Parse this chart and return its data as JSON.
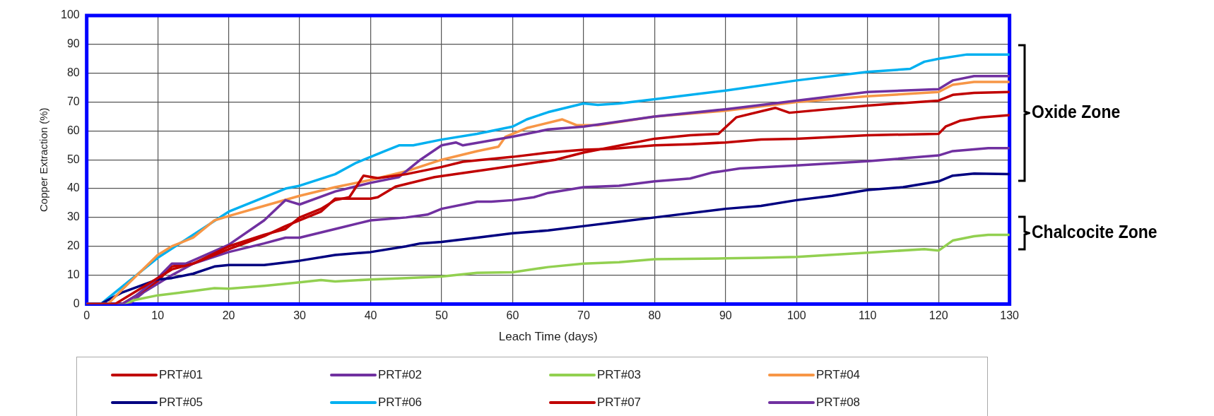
{
  "chart_data": {
    "type": "line",
    "xlabel": "Leach Time (days)",
    "ylabel": "Copper Extraction (%)",
    "xlim": [
      0,
      130
    ],
    "xticks": [
      0,
      10,
      20,
      30,
      40,
      50,
      60,
      70,
      80,
      90,
      100,
      110,
      120,
      130
    ],
    "ylim": [
      0,
      100
    ],
    "yticks": [
      0,
      10,
      20,
      30,
      40,
      50,
      60,
      70,
      80,
      90,
      100
    ],
    "grid": true,
    "legend": "bottom",
    "marker": "none",
    "line_style": "solid",
    "annotations": [
      "Oxide Zone",
      "Chalcocite Zone"
    ],
    "series": [
      {
        "name": "PRT#01",
        "color": "#c00000",
        "x": [
          0,
          4,
          6,
          10,
          12,
          15,
          20,
          25,
          28,
          30,
          33,
          35,
          37,
          39,
          41,
          45,
          50,
          53,
          60,
          65,
          70,
          74,
          80,
          85,
          90,
          95,
          100,
          110,
          120,
          121,
          123,
          126,
          130
        ],
        "values": [
          0,
          0,
          3,
          9,
          12,
          14,
          20,
          24,
          26,
          30,
          33,
          36,
          37,
          44.5,
          43.6,
          45,
          47.5,
          49.3,
          51,
          52.5,
          53.5,
          53.8,
          55,
          55.4,
          56,
          57,
          57.3,
          58.5,
          59,
          61.5,
          63.5,
          64.7,
          65.5
        ]
      },
      {
        "name": "PRT#02",
        "color": "#7030a0",
        "x": [
          0,
          5,
          7,
          10,
          12,
          14,
          20,
          25,
          28,
          30,
          35,
          40,
          44,
          47,
          50,
          52,
          53,
          60,
          65,
          70,
          80,
          90,
          100,
          110,
          120,
          122,
          125,
          130
        ],
        "values": [
          0,
          0,
          3,
          9,
          14,
          14,
          20.5,
          29,
          36,
          34.5,
          39,
          42,
          44,
          50,
          55,
          56,
          55,
          58,
          60.5,
          61.5,
          65,
          67.5,
          70.5,
          73.5,
          74.5,
          77.5,
          79,
          79
        ]
      },
      {
        "name": "PRT#03",
        "color": "#92d050",
        "x": [
          0,
          5,
          7,
          10,
          15,
          18,
          20,
          25,
          30,
          33,
          35,
          40,
          45,
          50,
          55,
          60,
          65,
          70,
          75,
          80,
          90,
          95,
          100,
          110,
          118,
          120,
          122,
          125,
          127,
          130
        ],
        "values": [
          0,
          0,
          1.5,
          3,
          4.5,
          5.5,
          5.3,
          6.3,
          7.5,
          8.3,
          7.8,
          8.5,
          9,
          9.5,
          10.8,
          11,
          12.8,
          14,
          14.5,
          15.5,
          15.8,
          16,
          16.3,
          17.8,
          19,
          18.5,
          22,
          23.5,
          24,
          24
        ]
      },
      {
        "name": "PRT#04",
        "color": "#f79646",
        "x": [
          0,
          3,
          5,
          10,
          12,
          15,
          18,
          20,
          25,
          30,
          35,
          40,
          45,
          50,
          55,
          58,
          59,
          62,
          67,
          69,
          72,
          80,
          90,
          100,
          110,
          120,
          122,
          125,
          130
        ],
        "values": [
          0,
          0,
          5,
          17,
          20,
          23,
          29,
          30.5,
          34,
          37.5,
          40.5,
          43,
          46,
          50,
          53,
          54.5,
          58,
          61,
          64,
          62,
          62,
          65,
          67,
          70,
          72,
          73.5,
          76,
          77,
          77
        ]
      },
      {
        "name": "PRT#05",
        "color": "#000080",
        "x": [
          0,
          2,
          5,
          10,
          12,
          15,
          18,
          20,
          25,
          30,
          35,
          40,
          45,
          47,
          50,
          55,
          60,
          65,
          70,
          75,
          80,
          90,
          95,
          100,
          105,
          110,
          115,
          120,
          122,
          125,
          130
        ],
        "values": [
          0,
          0,
          4,
          8.5,
          9,
          10.5,
          13,
          13.5,
          13.5,
          15,
          17,
          18,
          20,
          21,
          21.5,
          23,
          24.5,
          25.5,
          27,
          28.5,
          30,
          33,
          34,
          36,
          37.5,
          39.5,
          40.5,
          42.5,
          44.5,
          45.2,
          45
        ]
      },
      {
        "name": "PRT#06",
        "color": "#00b0f0",
        "x": [
          0,
          2,
          5,
          10,
          15,
          20,
          25,
          28,
          30,
          35,
          38,
          42,
          44,
          46,
          50,
          55,
          60,
          62,
          65,
          70,
          72,
          75,
          80,
          90,
          100,
          110,
          116,
          118,
          120,
          124,
          130
        ],
        "values": [
          0,
          0,
          6,
          16,
          24,
          32,
          37,
          40,
          41,
          45,
          49,
          53,
          55,
          55,
          57,
          59,
          61.5,
          64,
          66.5,
          69.5,
          69,
          69.5,
          71,
          74,
          77.5,
          80.5,
          81.5,
          84,
          85,
          86.5,
          86.5
        ]
      },
      {
        "name": "PRT#07",
        "color": "#c00000",
        "x": [
          0,
          5,
          7,
          10,
          12,
          15,
          20,
          25,
          28,
          30,
          33,
          35,
          37,
          40,
          41,
          43.5,
          49,
          57,
          66,
          70,
          80,
          85,
          89,
          91.5,
          97,
          99,
          110,
          120,
          122,
          125,
          130
        ],
        "values": [
          0,
          0,
          3,
          8,
          13,
          14,
          19,
          23.5,
          27,
          29,
          32,
          36.5,
          36.5,
          36.5,
          37,
          40.7,
          44,
          46.8,
          50,
          52.5,
          57.3,
          58.5,
          59,
          64.7,
          68,
          66.3,
          68.8,
          70.5,
          72.5,
          73.2,
          73.5
        ]
      },
      {
        "name": "PRT#08",
        "color": "#7030a0",
        "x": [
          0,
          6,
          8,
          12,
          15,
          20,
          25,
          28,
          30,
          35,
          40,
          45,
          48,
          50,
          55,
          57,
          60,
          63,
          65,
          70,
          75,
          80,
          85,
          88,
          92,
          100,
          110,
          120,
          122,
          127,
          130
        ],
        "values": [
          0,
          0,
          4,
          10,
          14,
          18,
          21,
          23,
          23,
          26,
          29,
          30,
          31,
          33,
          35.5,
          35.5,
          36,
          37,
          38.5,
          40.5,
          41,
          42.5,
          43.5,
          45.5,
          47,
          48,
          49.5,
          51.5,
          53,
          54,
          54
        ]
      }
    ]
  }
}
